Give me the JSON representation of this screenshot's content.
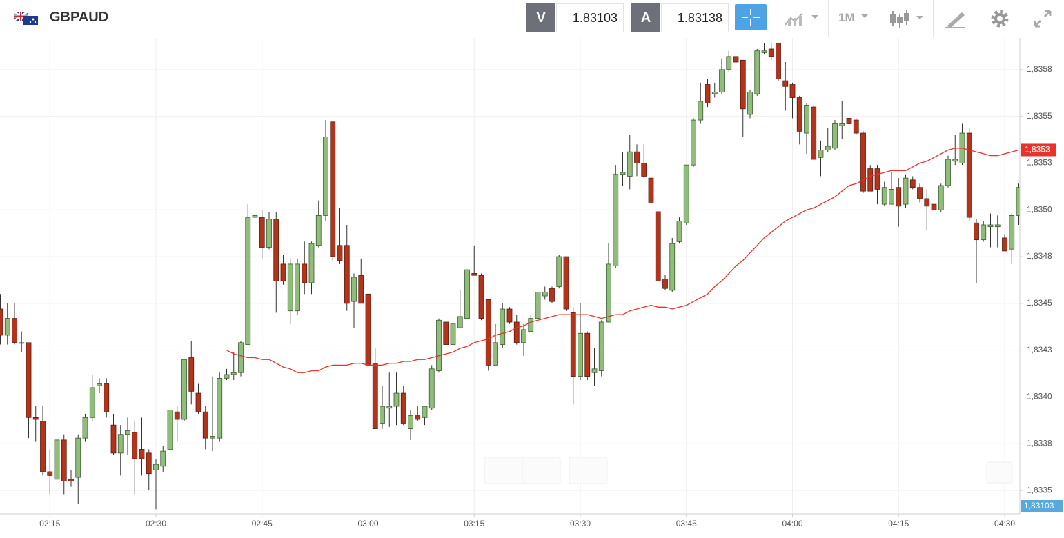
{
  "header": {
    "symbol": "GBPAUD",
    "sell_label": "V",
    "sell_price": "1.83103",
    "buy_label": "A",
    "buy_price": "1.83138",
    "timeframe": "1M"
  },
  "chart_data": {
    "type": "candlestick",
    "categories": [
      null,
      null,
      null,
      null,
      null,
      null,
      null,
      "02:15",
      null,
      null,
      null,
      null,
      null,
      null,
      null,
      null,
      null,
      null,
      null,
      null,
      null,
      null,
      "02:30",
      null,
      null,
      null,
      null,
      null,
      null,
      null,
      null,
      null,
      null,
      null,
      null,
      null,
      null,
      "02:45",
      null,
      null,
      null,
      null,
      null,
      null,
      null,
      null,
      null,
      null,
      null,
      null,
      null,
      null,
      "03:00",
      null,
      null,
      null,
      null,
      null,
      null,
      null,
      null,
      null,
      null,
      null,
      null,
      null,
      null,
      "03:15",
      null,
      null,
      null,
      null,
      null,
      null,
      null,
      null,
      null,
      null,
      null,
      null,
      null,
      null,
      "03:30",
      null,
      null,
      null,
      null,
      null,
      null,
      null,
      null,
      null,
      null,
      null,
      null,
      null,
      null,
      "03:45",
      null,
      null,
      null,
      null,
      null,
      null,
      null,
      null,
      null,
      null,
      null,
      null,
      null,
      null,
      "04:00",
      null,
      null,
      null,
      null,
      null,
      null,
      null,
      null,
      null,
      null,
      null,
      null,
      null,
      null,
      "04:15",
      null,
      null,
      null,
      null,
      null,
      null,
      null,
      null,
      null,
      null,
      null,
      null,
      null,
      null,
      "04:30",
      null,
      null
    ],
    "open": [
      1.83447,
      1.83433,
      1.83442,
      1.83429,
      1.83429,
      1.83389,
      1.83387,
      1.8336,
      1.83356,
      1.83377,
      1.83356,
      1.83357,
      1.83378,
      1.83389,
      1.83406,
      1.83407,
      1.83385,
      1.8337,
      1.8338,
      1.83381,
      1.83372,
      1.8337,
      1.83361,
      1.83363,
      1.83372,
      1.83392,
      1.83388,
      1.83421,
      1.83402,
      1.83392,
      1.83378,
      1.83378,
      1.8341,
      1.83412,
      1.83413,
      1.83428,
      1.83496,
      1.83496,
      1.8348,
      1.83495,
      1.83471,
      1.83446,
      1.83446,
      1.83471,
      1.83461,
      1.83481,
      1.83497,
      1.83547,
      1.83481,
      1.83481,
      1.83451,
      1.83465,
      1.83455,
      1.83418,
      1.83386,
      1.83394,
      1.83395,
      1.83402,
      1.83383,
      1.8339,
      1.83389,
      1.83394,
      1.83414,
      1.8344,
      1.83428,
      1.83437,
      1.83442,
      1.83466,
      1.83465,
      1.83452,
      1.83417,
      1.83428,
      1.83447,
      1.8344,
      1.83429,
      1.83435,
      1.83442,
      1.83454,
      1.83458,
      1.83459,
      1.83475,
      1.83445,
      1.83411,
      1.83434,
      1.83413,
      1.83414,
      1.8344,
      1.8347,
      1.83519,
      1.83518,
      1.83531,
      1.83525,
      1.83517,
      1.83499,
      1.83463,
      1.83457,
      1.83483,
      1.83493,
      1.83524,
      1.83548,
      1.83567,
      1.83562,
      1.83563,
      1.83575,
      1.83582,
      1.8358,
      1.83551,
      1.83562,
      1.83584,
      1.83586,
      1.83589,
      1.83569,
      1.83567,
      1.8356,
      1.83541,
      1.83555,
      1.83528,
      1.83532,
      1.83533,
      1.83545,
      1.83549,
      1.83548,
      1.83541,
      1.83522,
      1.83522,
      1.83503,
      1.83503,
      1.83512,
      1.83503,
      1.83516,
      1.83512,
      1.83506,
      1.83503,
      1.835,
      1.83513,
      1.83526,
      1.83525,
      1.83541,
      1.83493,
      1.83484,
      1.83491,
      1.83491,
      1.83485,
      1.83479,
      1.83497
    ],
    "high": [
      1.83455,
      1.8345,
      1.8345,
      1.83435,
      1.83429,
      1.83395,
      1.83395,
      1.83372,
      1.8338,
      1.8338,
      1.83361,
      1.8338,
      1.83391,
      1.83412,
      1.8341,
      1.8341,
      1.83391,
      1.83385,
      1.83389,
      1.83387,
      1.83389,
      1.83372,
      1.83367,
      1.83374,
      1.83396,
      1.83395,
      1.8342,
      1.8343,
      1.83407,
      1.83395,
      1.83411,
      1.83413,
      1.83415,
      1.83424,
      1.8343,
      1.83503,
      1.83532,
      1.835,
      1.83499,
      1.83499,
      1.83476,
      1.83474,
      1.83474,
      1.83483,
      1.83483,
      1.83505,
      1.83548,
      1.83547,
      1.83501,
      1.83492,
      1.83466,
      1.83474,
      1.83455,
      1.83426,
      1.83406,
      1.83413,
      1.83413,
      1.83406,
      1.83393,
      1.83395,
      1.83395,
      1.83417,
      1.83442,
      1.8344,
      1.83448,
      1.83457,
      1.83468,
      1.83481,
      1.83466,
      1.83452,
      1.83439,
      1.8345,
      1.83448,
      1.83444,
      1.83439,
      1.83444,
      1.83462,
      1.83459,
      1.83459,
      1.83476,
      1.83475,
      1.83448,
      1.8345,
      1.83435,
      1.83426,
      1.83441,
      1.83482,
      1.83524,
      1.83531,
      1.8354,
      1.83535,
      1.83535,
      1.83517,
      1.83499,
      1.83465,
      1.83485,
      1.83496,
      1.83524,
      1.83549,
      1.83568,
      1.8357,
      1.83568,
      1.83581,
      1.83585,
      1.83584,
      1.8358,
      1.83564,
      1.83586,
      1.83589,
      1.83589,
      1.83589,
      1.83579,
      1.83568,
      1.83561,
      1.83557,
      1.83556,
      1.83537,
      1.83544,
      1.83548,
      1.83558,
      1.83551,
      1.83549,
      1.83542,
      1.83524,
      1.83524,
      1.83515,
      1.8352,
      1.83517,
      1.83519,
      1.83518,
      1.83514,
      1.83511,
      1.83507,
      1.83514,
      1.83529,
      1.8354,
      1.83546,
      1.83544,
      1.83495,
      1.83494,
      1.83498,
      1.83497,
      1.83487,
      1.83498,
      1.83514
    ],
    "low": [
      1.83428,
      1.83428,
      1.83428,
      1.83424,
      1.83378,
      1.83376,
      1.83358,
      1.83348,
      1.8335,
      1.83348,
      1.83352,
      1.83343,
      1.83376,
      1.83387,
      1.83402,
      1.83389,
      1.83369,
      1.83358,
      1.83369,
      1.83348,
      1.83358,
      1.8335,
      1.8334,
      1.8336,
      1.83371,
      1.83376,
      1.83387,
      1.83396,
      1.83391,
      1.83372,
      1.83371,
      1.83376,
      1.83409,
      1.83409,
      1.83411,
      1.83428,
      1.83494,
      1.83474,
      1.83479,
      1.83445,
      1.8346,
      1.83439,
      1.83444,
      1.83455,
      1.83455,
      1.8348,
      1.83494,
      1.83473,
      1.83471,
      1.83446,
      1.83437,
      1.8345,
      1.83417,
      1.83383,
      1.83383,
      1.83384,
      1.83385,
      1.83385,
      1.83377,
      1.83387,
      1.83385,
      1.83393,
      1.83413,
      1.83428,
      1.83428,
      1.83437,
      1.83442,
      1.83465,
      1.83441,
      1.83414,
      1.83417,
      1.83426,
      1.83439,
      1.83428,
      1.83422,
      1.83435,
      1.83441,
      1.83452,
      1.8345,
      1.83458,
      1.83446,
      1.83396,
      1.83409,
      1.83409,
      1.83406,
      1.83411,
      1.8344,
      1.83469,
      1.83513,
      1.83511,
      1.83518,
      1.83517,
      1.83504,
      1.83462,
      1.83457,
      1.83456,
      1.83482,
      1.83492,
      1.83523,
      1.83546,
      1.83555,
      1.8356,
      1.83562,
      1.83574,
      1.83578,
      1.83539,
      1.83549,
      1.83561,
      1.83583,
      1.8358,
      1.83569,
      1.83553,
      1.83549,
      1.83535,
      1.8353,
      1.83527,
      1.83518,
      1.83531,
      1.83532,
      1.83538,
      1.83538,
      1.8354,
      1.83509,
      1.8351,
      1.83503,
      1.83502,
      1.83503,
      1.83491,
      1.83501,
      1.83511,
      1.83504,
      1.83489,
      1.83499,
      1.83499,
      1.83512,
      1.83524,
      1.83524,
      1.83494,
      1.83461,
      1.83483,
      1.8348,
      1.8348,
      1.83478,
      1.83471,
      1.83492
    ],
    "close": [
      1.83433,
      1.83442,
      1.83429,
      1.83429,
      1.83389,
      1.83388,
      1.8336,
      1.83358,
      1.83377,
      1.83355,
      1.83355,
      1.83378,
      1.83389,
      1.83405,
      1.83407,
      1.83392,
      1.8337,
      1.8338,
      1.83382,
      1.83367,
      1.83367,
      1.83359,
      1.83364,
      1.83371,
      1.83393,
      1.83388,
      1.8342,
      1.83403,
      1.83392,
      1.83378,
      1.83379,
      1.8341,
      1.83412,
      1.83413,
      1.83429,
      1.83496,
      1.83497,
      1.8348,
      1.83495,
      1.83462,
      1.83462,
      1.83471,
      1.83471,
      1.83461,
      1.83482,
      1.83497,
      1.83539,
      1.83475,
      1.83473,
      1.8345,
      1.83464,
      1.8345,
      1.83417,
      1.83383,
      1.83395,
      1.83395,
      1.83402,
      1.83386,
      1.8339,
      1.83388,
      1.83395,
      1.83415,
      1.83441,
      1.83428,
      1.83439,
      1.83443,
      1.83468,
      1.83465,
      1.83442,
      1.83417,
      1.83429,
      1.83447,
      1.8344,
      1.83429,
      1.83436,
      1.83442,
      1.83456,
      1.83456,
      1.83451,
      1.83475,
      1.83447,
      1.83411,
      1.83434,
      1.83411,
      1.83415,
      1.8344,
      1.83471,
      1.83519,
      1.8352,
      1.83531,
      1.83525,
      1.83518,
      1.83504,
      1.83462,
      1.83458,
      1.83482,
      1.83494,
      1.83524,
      1.83548,
      1.83558,
      1.83557,
      1.83563,
      1.83575,
      1.83582,
      1.83579,
      1.83554,
      1.83563,
      1.83585,
      1.83585,
      1.83582,
      1.8357,
      1.83566,
      1.8356,
      1.83542,
      1.83556,
      1.83527,
      1.83532,
      1.83534,
      1.83546,
      1.83546,
      1.83546,
      1.83541,
      1.8351,
      1.8351,
      1.83511,
      1.83512,
      1.83511,
      1.83502,
      1.83517,
      1.83512,
      1.83506,
      1.83502,
      1.835,
      1.83513,
      1.83527,
      1.83527,
      1.83541,
      1.83496,
      1.83484,
      1.83492,
      1.83492,
      1.83492,
      1.83478,
      1.83497,
      1.83512
    ],
    "up_color": "#8fbd7a",
    "down_color": "#b3331b",
    "overlay": {
      "color": "#e8322c",
      "value_label": "1,8353",
      "values": [
        null,
        null,
        null,
        null,
        null,
        null,
        null,
        null,
        null,
        null,
        null,
        null,
        null,
        null,
        null,
        null,
        null,
        null,
        null,
        null,
        null,
        null,
        null,
        null,
        null,
        null,
        null,
        null,
        null,
        null,
        null,
        null,
        1.83425,
        1.83423,
        1.83422,
        1.83421,
        1.83421,
        1.8342,
        1.8342,
        1.83418,
        1.83416,
        1.83415,
        1.83413,
        1.83413,
        1.83414,
        1.83414,
        1.83416,
        1.83417,
        1.83417,
        1.83417,
        1.83418,
        1.83418,
        1.83417,
        1.83417,
        1.83417,
        1.83418,
        1.83418,
        1.83419,
        1.83419,
        1.8342,
        1.8342,
        1.83421,
        1.83422,
        1.83423,
        1.83424,
        1.83426,
        1.83427,
        1.83429,
        1.8343,
        1.83431,
        1.83433,
        1.83434,
        1.83435,
        1.83437,
        1.83438,
        1.8344,
        1.83441,
        1.83442,
        1.83443,
        1.83444,
        1.83444,
        1.83444,
        1.83444,
        1.83444,
        1.83443,
        1.83442,
        1.83443,
        1.83444,
        1.83444,
        1.83446,
        1.83447,
        1.83448,
        1.83449,
        1.83448,
        1.83448,
        1.83447,
        1.83448,
        1.83449,
        1.83451,
        1.83453,
        1.83455,
        1.83459,
        1.83462,
        1.83466,
        1.8347,
        1.83473,
        1.83477,
        1.83481,
        1.83485,
        1.83488,
        1.83491,
        1.83494,
        1.83496,
        1.83498,
        1.835,
        1.83501,
        1.83503,
        1.83505,
        1.83507,
        1.8351,
        1.83513,
        1.83514,
        1.83516,
        1.83518,
        1.83519,
        1.8352,
        1.83521,
        1.83521,
        1.83521,
        1.83523,
        1.83525,
        1.83526,
        1.83528,
        1.8353,
        1.83532,
        1.83533,
        1.83533,
        1.83532,
        1.83531,
        1.8353,
        1.83529,
        1.83529,
        1.8353,
        1.83531,
        1.83532
      ]
    },
    "bid_marker": {
      "value": 1.83103,
      "label": "1,83103",
      "color": "#5aa9dc"
    },
    "ylim": [
      1.833375,
      1.835919
    ],
    "yticks": [
      {
        "value": 1.8335,
        "label": "1,8335"
      },
      {
        "value": 1.83375,
        "label": "1,8338"
      },
      {
        "value": 1.834,
        "label": "1,8340"
      },
      {
        "value": 1.83425,
        "label": "1,8343"
      },
      {
        "value": 1.8345,
        "label": "1,8345"
      },
      {
        "value": 1.83475,
        "label": "1,8348"
      },
      {
        "value": 1.835,
        "label": "1,8350"
      },
      {
        "value": 1.83525,
        "label": "1,8353"
      },
      {
        "value": 1.8355,
        "label": "1,8355"
      },
      {
        "value": 1.83575,
        "label": "1,8358"
      }
    ],
    "grid": true
  }
}
